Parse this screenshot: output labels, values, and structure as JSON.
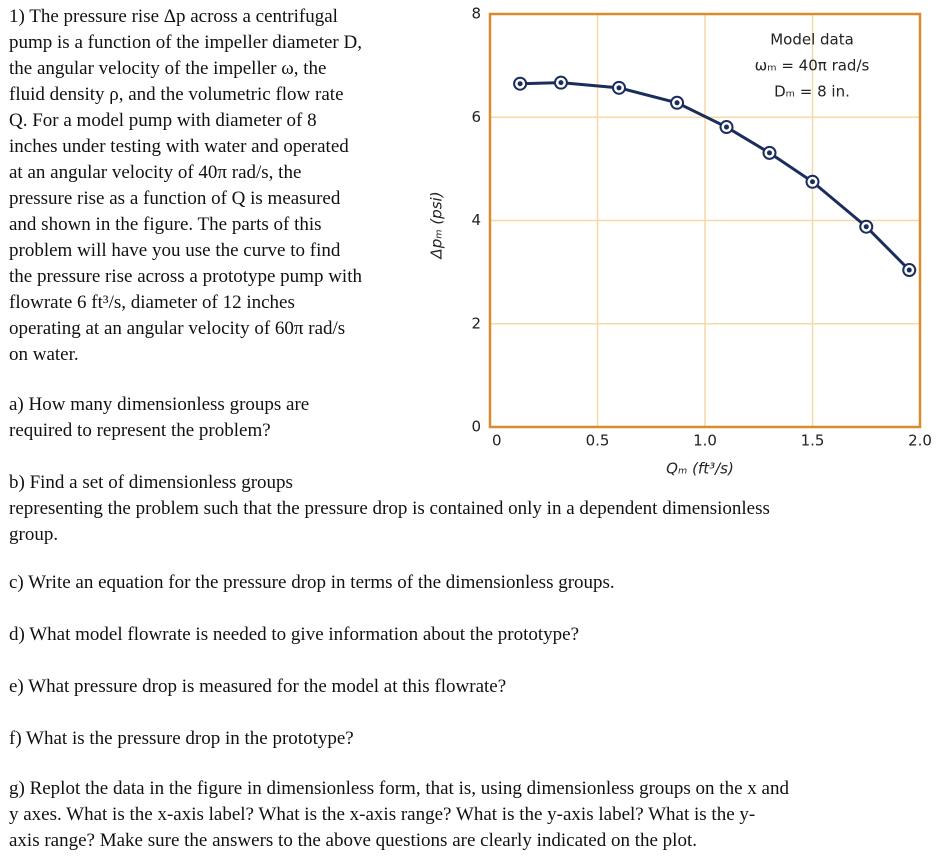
{
  "problem": {
    "intro": [
      "1) The pressure rise Δp across a centrifugal",
      "pump is a function of the impeller diameter D,",
      "the angular velocity of the impeller ω, the",
      "fluid density ρ, and the volumetric flow rate",
      "Q.  For a model pump with diameter of 8",
      "inches under testing with water and operated",
      "at an angular velocity of 40π rad/s, the",
      "pressure rise as a function of Q is measured",
      "and shown in the figure.   The parts of this",
      "problem will have you use the curve to find",
      "the pressure rise across a prototype pump with",
      "flowrate 6 ft³/s, diameter of 12 inches",
      "operating at an angular velocity of 60π rad/s",
      "on water."
    ],
    "a": [
      "a) How many dimensionless groups are",
      "required to represent the problem?"
    ],
    "b": [
      "b)  Find a set of dimensionless groups",
      "representing the problem such that the pressure drop is contained only in a dependent dimensionless",
      "group."
    ],
    "c": [
      "c) Write an equation for the pressure drop in terms of the dimensionless groups."
    ],
    "d": [
      "d) What model flowrate is needed to give information about the prototype?"
    ],
    "e": [
      "e) What pressure drop is measured for the model at this flowrate?"
    ],
    "f": [
      "f) What is the pressure drop in the prototype?"
    ],
    "g": [
      "g) Replot the data in the figure in dimensionless form, that is, using dimensionless groups on the x and",
      "y axes.  What is the x-axis label?  What is the x-axis range?  What is the y-axis label?  What is the y-",
      "axis range?  Make sure the answers to the above questions are clearly indicated on the plot."
    ]
  },
  "chart_data": {
    "type": "line",
    "x_label": "Qₘ (ft³/s)",
    "y_label": "Δpₘ (psi)",
    "annotations": [
      "Model data",
      "ωₘ = 40π rad/s",
      "Dₘ = 8 in."
    ],
    "x": [
      0.14,
      0.33,
      0.6,
      0.87,
      1.1,
      1.3,
      1.5,
      1.75,
      1.95
    ],
    "series": [
      {
        "color": "#1b2d5c",
        "values": [
          6.65,
          6.67,
          6.57,
          6.28,
          5.81,
          5.31,
          4.75,
          3.88,
          3.04
        ]
      }
    ],
    "xlim": [
      0,
      2
    ],
    "ylim": [
      0,
      8
    ],
    "xticks": [
      0,
      0.5,
      {
        "value": 1,
        "label": "1.0"
      },
      1.5,
      {
        "value": 2,
        "label": "2.0"
      }
    ],
    "yticks": [
      0,
      2,
      4,
      6,
      8
    ],
    "grid": true
  }
}
